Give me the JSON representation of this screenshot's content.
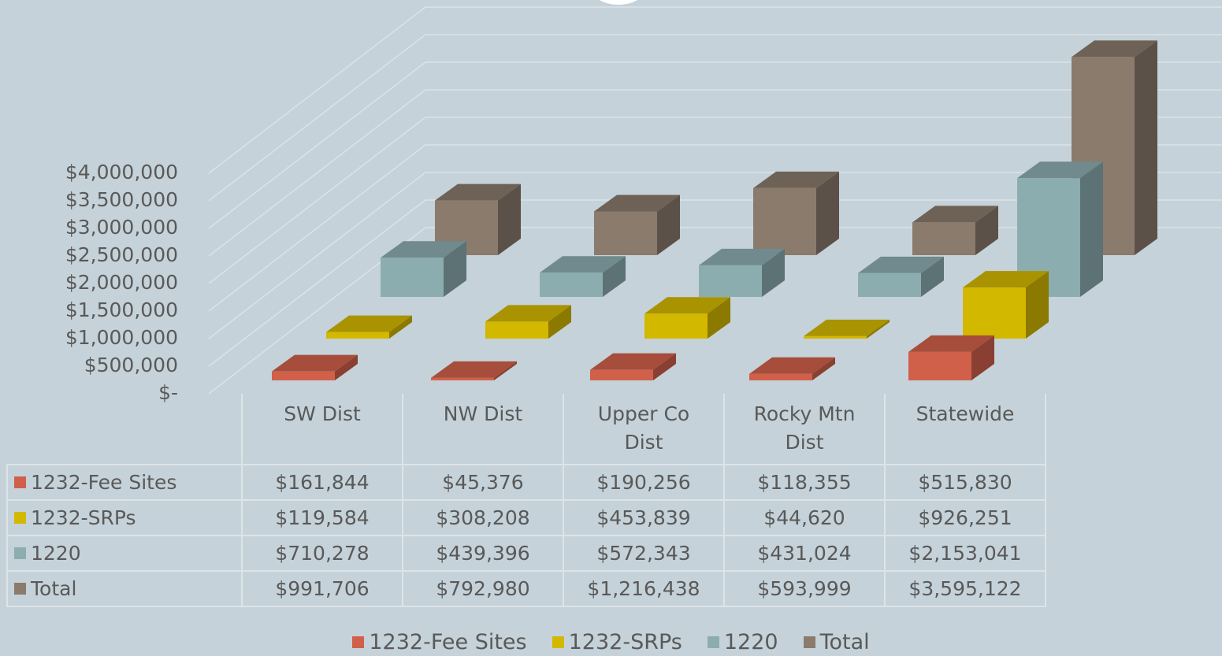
{
  "chart_data": {
    "type": "bar3d",
    "categories": [
      "SW Dist",
      "NW Dist",
      "Upper Co Dist",
      "Rocky Mtn Dist",
      "Statewide"
    ],
    "series": [
      {
        "name": "1232-Fee Sites",
        "color": "#d0604a",
        "values": [
          161844,
          45376,
          190256,
          118355,
          515830
        ],
        "value_labels": [
          "$161,844",
          "$45,376",
          "$190,256",
          "$118,355",
          "$515,830"
        ]
      },
      {
        "name": "1232-SRPs",
        "color": "#d3b800",
        "values": [
          119584,
          308208,
          453839,
          44620,
          926251
        ],
        "value_labels": [
          "$119,584",
          "$308,208",
          "$453,839",
          "$44,620",
          "$926,251"
        ]
      },
      {
        "name": "1220",
        "color": "#8cadb0",
        "values": [
          710278,
          439396,
          572343,
          431024,
          2153041
        ],
        "value_labels": [
          "$710,278",
          "$439,396",
          "$572,343",
          "$431,024",
          "$2,153,041"
        ]
      },
      {
        "name": "Total",
        "color": "#8a7b6d",
        "values": [
          991706,
          792980,
          1216438,
          593999,
          3595122
        ],
        "value_labels": [
          "$991,706",
          "$792,980",
          "$1,216,438",
          "$593,999",
          "$3,595,122"
        ]
      }
    ],
    "ylim": [
      0,
      4000000
    ],
    "yticks": [
      {
        "value": 0,
        "label": "$-"
      },
      {
        "value": 500000,
        "label": "$500,000"
      },
      {
        "value": 1000000,
        "label": "$1,000,000"
      },
      {
        "value": 1500000,
        "label": "$1,500,000"
      },
      {
        "value": 2000000,
        "label": "$2,000,000"
      },
      {
        "value": 2500000,
        "label": "$2,500,000"
      },
      {
        "value": 3000000,
        "label": "$3,000,000"
      },
      {
        "value": 3500000,
        "label": "$3,500,000"
      },
      {
        "value": 4000000,
        "label": "$4,000,000"
      }
    ],
    "grid": true,
    "legend": "bottom"
  }
}
